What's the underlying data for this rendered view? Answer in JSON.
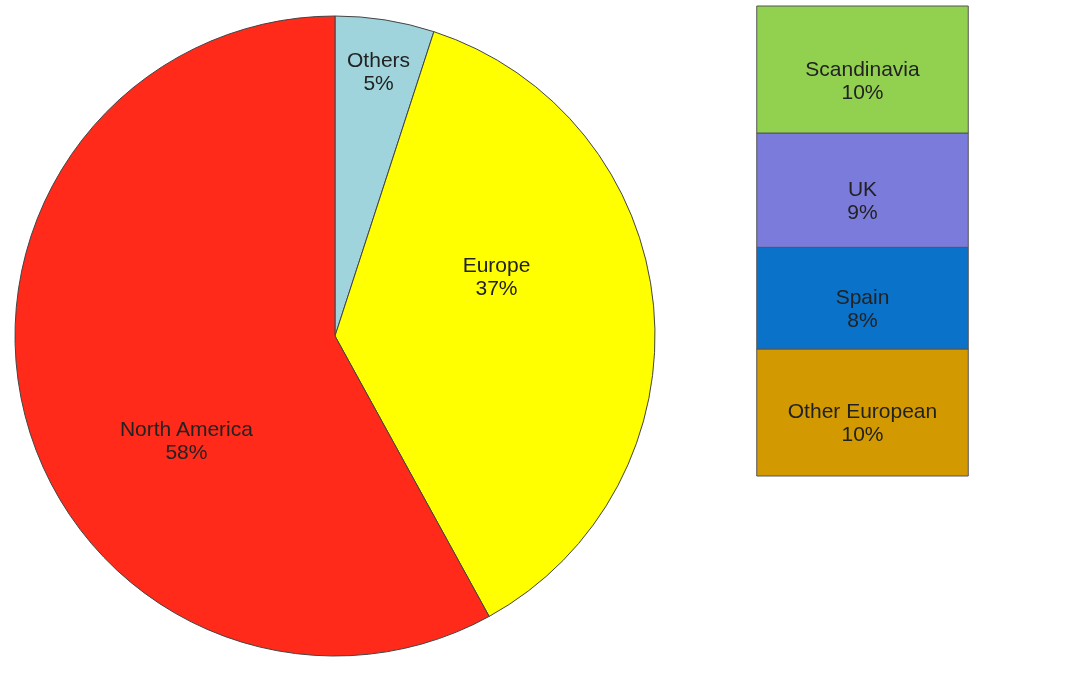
{
  "chart_data": [
    {
      "type": "pie",
      "categories": [
        "Others",
        "Europe",
        "North America"
      ],
      "values": [
        5,
        37,
        58
      ],
      "value_labels": [
        "5%",
        "37%",
        "58%"
      ],
      "colors": [
        "#9fd4dc",
        "#ffff00",
        "#ff2a1a"
      ],
      "legend": false
    },
    {
      "type": "bar",
      "stacked": true,
      "categories": [
        null
      ],
      "ylim": [
        0,
        37
      ],
      "tick_labels": false,
      "legend": false,
      "series": [
        {
          "name": "Other European",
          "color": "#d29a00",
          "values": [
            10
          ],
          "value_labels": [
            "10%"
          ]
        },
        {
          "name": "Spain",
          "color": "#0a72c8",
          "values": [
            8
          ],
          "value_labels": [
            "8%"
          ]
        },
        {
          "name": "UK",
          "color": "#7b7bdb",
          "values": [
            9
          ],
          "value_labels": [
            "9%"
          ]
        },
        {
          "name": "Scandinavia",
          "color": "#92d050",
          "values": [
            10
          ],
          "value_labels": [
            "10%"
          ]
        }
      ]
    }
  ]
}
